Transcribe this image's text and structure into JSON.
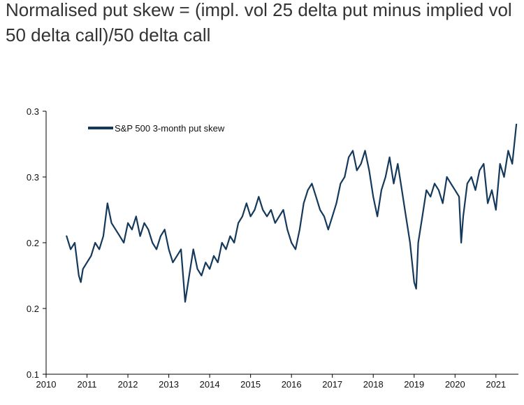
{
  "title": {
    "line1": "Normalised put skew = (impl. vol 25 delta put minus implied vol",
    "line2": "50 delta call)/50 delta call"
  },
  "colors": {
    "series": "#14395b",
    "axis": "#000000",
    "background": "#ffffff"
  },
  "chart_data": {
    "type": "line",
    "title": "Normalised put skew = (impl. vol 25 delta put minus implied vol 50 delta call)/50 delta call",
    "xlabel": "",
    "ylabel": "",
    "x_ticks": [
      "2010",
      "2011",
      "2012",
      "2013",
      "2014",
      "2015",
      "2016",
      "2017",
      "2018",
      "2019",
      "2020",
      "2021"
    ],
    "y_tick_labels": [
      "0.1",
      "0.2",
      "0.2",
      "0.3",
      "0.3"
    ],
    "ylim": [
      0.1,
      0.3
    ],
    "xlim": [
      2010.0,
      2021.55
    ],
    "grid": false,
    "legend_position": "top-left",
    "series": [
      {
        "name": "S&P 500 3-month put skew",
        "x": [
          2010.5,
          2010.6,
          2010.7,
          2010.8,
          2010.85,
          2010.9,
          2011.0,
          2011.1,
          2011.2,
          2011.3,
          2011.4,
          2011.5,
          2011.6,
          2011.7,
          2011.8,
          2011.9,
          2012.0,
          2012.1,
          2012.2,
          2012.3,
          2012.4,
          2012.5,
          2012.6,
          2012.7,
          2012.8,
          2012.9,
          2013.0,
          2013.1,
          2013.2,
          2013.3,
          2013.4,
          2013.5,
          2013.6,
          2013.7,
          2013.8,
          2013.9,
          2014.0,
          2014.1,
          2014.2,
          2014.3,
          2014.4,
          2014.5,
          2014.6,
          2014.7,
          2014.8,
          2014.9,
          2015.0,
          2015.1,
          2015.2,
          2015.3,
          2015.4,
          2015.5,
          2015.6,
          2015.7,
          2015.8,
          2015.9,
          2016.0,
          2016.1,
          2016.2,
          2016.3,
          2016.4,
          2016.5,
          2016.6,
          2016.7,
          2016.8,
          2016.9,
          2017.0,
          2017.1,
          2017.2,
          2017.3,
          2017.4,
          2017.5,
          2017.6,
          2017.7,
          2017.8,
          2017.9,
          2018.0,
          2018.1,
          2018.2,
          2018.3,
          2018.4,
          2018.5,
          2018.6,
          2018.7,
          2018.8,
          2018.9,
          2019.0,
          2019.05,
          2019.1,
          2019.2,
          2019.3,
          2019.4,
          2019.5,
          2019.6,
          2019.7,
          2019.8,
          2019.9,
          2020.0,
          2020.1,
          2020.15,
          2020.2,
          2020.3,
          2020.4,
          2020.5,
          2020.6,
          2020.7,
          2020.8,
          2020.9,
          2021.0,
          2021.1,
          2021.2,
          2021.3,
          2021.4,
          2021.5
        ],
        "y": [
          0.205,
          0.195,
          0.2,
          0.175,
          0.17,
          0.18,
          0.185,
          0.19,
          0.2,
          0.195,
          0.205,
          0.23,
          0.215,
          0.21,
          0.205,
          0.2,
          0.215,
          0.21,
          0.22,
          0.205,
          0.215,
          0.21,
          0.2,
          0.195,
          0.205,
          0.21,
          0.195,
          0.185,
          0.19,
          0.195,
          0.155,
          0.175,
          0.195,
          0.18,
          0.175,
          0.185,
          0.18,
          0.19,
          0.185,
          0.2,
          0.195,
          0.205,
          0.2,
          0.215,
          0.22,
          0.23,
          0.22,
          0.225,
          0.235,
          0.225,
          0.22,
          0.225,
          0.215,
          0.22,
          0.225,
          0.21,
          0.2,
          0.195,
          0.21,
          0.23,
          0.24,
          0.245,
          0.235,
          0.225,
          0.22,
          0.21,
          0.22,
          0.23,
          0.245,
          0.25,
          0.265,
          0.27,
          0.255,
          0.26,
          0.27,
          0.255,
          0.235,
          0.22,
          0.24,
          0.25,
          0.265,
          0.245,
          0.26,
          0.24,
          0.22,
          0.2,
          0.17,
          0.165,
          0.2,
          0.22,
          0.24,
          0.235,
          0.245,
          0.24,
          0.23,
          0.25,
          0.245,
          0.24,
          0.235,
          0.2,
          0.22,
          0.245,
          0.25,
          0.24,
          0.255,
          0.26,
          0.23,
          0.24,
          0.225,
          0.26,
          0.25,
          0.27,
          0.26,
          0.29
        ]
      }
    ]
  }
}
